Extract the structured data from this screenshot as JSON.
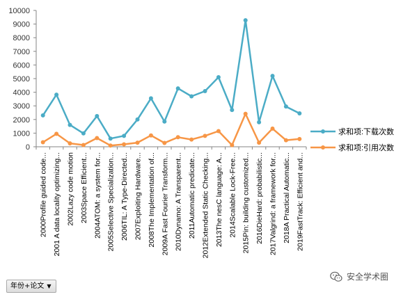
{
  "chart_data": {
    "type": "line",
    "categories": [
      "2000Profile guided code...",
      "2001 A data locality optimizing...",
      "2002Lazy code motion",
      "2003Space Efficient...",
      "2004ATOM: a system for...",
      "2005Selective Specialization...",
      "2006TIL: A Type-Directed...",
      "2007Exploiting Hardware...",
      "2008The Implementation of...",
      "2009A Fast Fourier Transform...",
      "2010Dynamo: A Transparent...",
      "2011Automatic predicate...",
      "2012Extended Static Checking...",
      "2013The nesC language: A...",
      "2014Scalable Lock-Free...",
      "2015Pin: building customized...",
      "2016DieHard: probabilistic...",
      "2017Valgrind: a framework for...",
      "2018A Practical Automatic...",
      "2019FastTrack: Efficient and..."
    ],
    "series": [
      {
        "name": "求和项:下载次数",
        "color": "#4bacc6",
        "values": [
          2300,
          3820,
          1600,
          980,
          2250,
          600,
          800,
          2000,
          3550,
          1850,
          4280,
          3700,
          4080,
          5100,
          2700,
          9280,
          1800,
          5200,
          2950,
          2450
        ]
      },
      {
        "name": "求和项:引用次数",
        "color": "#f79646",
        "values": [
          330,
          950,
          250,
          130,
          640,
          90,
          180,
          300,
          830,
          280,
          700,
          530,
          800,
          1150,
          120,
          2420,
          300,
          1330,
          480,
          570
        ]
      }
    ],
    "ylim": [
      0,
      10000
    ],
    "yticks": [
      "0",
      "1000",
      "2000",
      "3000",
      "4000",
      "5000",
      "6000",
      "7000",
      "8000",
      "9000",
      "10000"
    ],
    "grid": false,
    "legend": "right"
  },
  "filter": {
    "label": "年份+论文"
  },
  "watermark": {
    "text": "安全学术圈",
    "icon": "wechat-icon"
  }
}
